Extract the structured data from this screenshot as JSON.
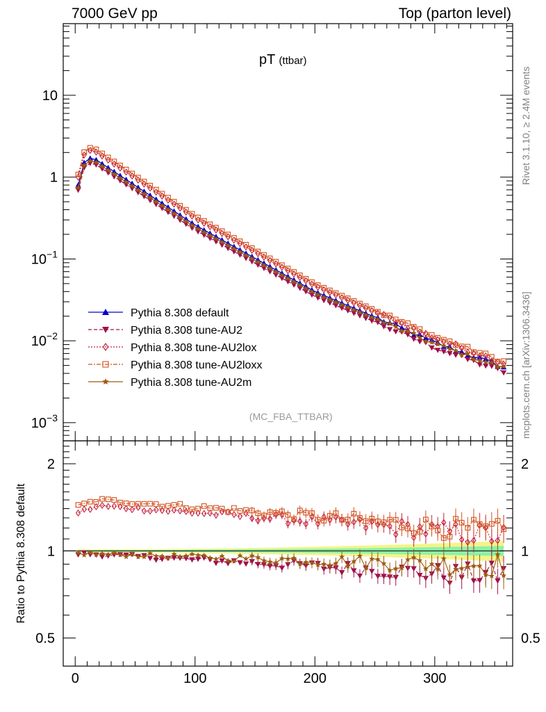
{
  "header": {
    "left": "7000 GeV pp",
    "right": "Top (parton level)"
  },
  "side_labels": {
    "rivet": "Rivet 3.1.10, ≥ 2.4M events",
    "mcplots": "mcplots.cern.ch [arXiv:1306.3436]"
  },
  "chart_data": [
    {
      "type": "scatter",
      "panel": "main",
      "title": "pT",
      "title_sub": "(ttbar)",
      "analysis_label": "(MC_FBA_TTBAR)",
      "yscale": "log",
      "xlim": [
        -10,
        365
      ],
      "ylim": [
        0.0006,
        75
      ],
      "xlabel": "",
      "ylabel": "",
      "y_ticks": [
        {
          "value": 10,
          "label": "10"
        },
        {
          "value": 1,
          "label": "1"
        },
        {
          "value": 0.1,
          "label": "10",
          "exp": "−1"
        },
        {
          "value": 0.01,
          "label": "10",
          "exp": "−2"
        },
        {
          "value": 0.001,
          "label": "10",
          "exp": "−3"
        }
      ],
      "legend_position": "bottom-left",
      "curve_model": {
        "x_start": 2.5,
        "x_end": 357.5,
        "bin_width": 5,
        "peak_x": 15,
        "anchor_points": [
          [
            2.5,
            0.8
          ],
          [
            7.5,
            1.5
          ],
          [
            12.5,
            1.7
          ],
          [
            15,
            1.72
          ],
          [
            100,
            0.26
          ],
          [
            200,
            0.04
          ],
          [
            300,
            0.0095
          ],
          [
            357.5,
            0.0048
          ]
        ]
      },
      "series": [
        {
          "name": "Pythia 8.308 default",
          "color": "#0000cc",
          "marker": "triangle-up",
          "line": "solid",
          "scale": 1.0
        },
        {
          "name": "Pythia 8.308 tune-AU2",
          "color": "#a0104a",
          "marker": "triangle-down",
          "line": "dashed",
          "scale": 0.87
        },
        {
          "name": "Pythia 8.308 tune-AU2lox",
          "color": "#c41e3a",
          "marker": "diamond-open",
          "line": "dotted",
          "scale": 1.25
        },
        {
          "name": "Pythia 8.308 tune-AU2loxx",
          "color": "#d2501e",
          "marker": "square-open",
          "line": "dashdot",
          "scale": 1.35
        },
        {
          "name": "Pythia 8.308 tune-AU2m",
          "color": "#9c5a0e",
          "marker": "star",
          "line": "solid",
          "scale": 0.93
        }
      ]
    },
    {
      "type": "scatter",
      "panel": "ratio",
      "ylabel": "Ratio to Pythia 8.308 default",
      "yscale": "log",
      "xlim": [
        -10,
        365
      ],
      "ylim": [
        0.4,
        2.4
      ],
      "x_ticks": [
        0,
        100,
        200,
        300
      ],
      "y_ticks": [
        {
          "value": 0.5,
          "label": "0.5"
        },
        {
          "value": 1,
          "label": "1"
        },
        {
          "value": 2,
          "label": "2"
        }
      ],
      "band_colors": {
        "inner": "#8ef0a6",
        "outer": "#f4f48a"
      },
      "series": [
        {
          "name": "Pythia 8.308 tune-AU2",
          "start": 0.98,
          "end": 0.83
        },
        {
          "name": "Pythia 8.308 tune-AU2lox",
          "start": 1.35,
          "peak": 1.43,
          "end": 1.12
        },
        {
          "name": "Pythia 8.308 tune-AU2loxx",
          "start": 1.42,
          "peak": 1.5,
          "end": 1.15
        },
        {
          "name": "Pythia 8.308 tune-AU2m",
          "start": 0.98,
          "end": 0.9
        }
      ]
    }
  ]
}
